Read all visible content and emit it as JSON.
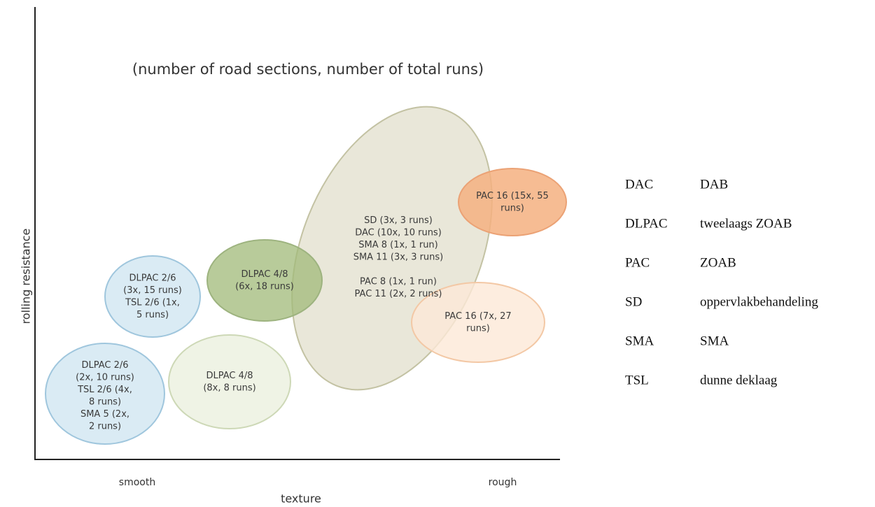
{
  "subtitle": "(number of road sections, number of total runs)",
  "x_axis": {
    "label": "texture",
    "low": "smooth",
    "high": "rough"
  },
  "y_axis": {
    "label": "rolling resistance"
  },
  "nodes": [
    {
      "blocks": [
        [
          "DLPAC 2/6",
          "(3x, 15 runs)",
          "TSL 2/6 (1x,",
          "5 runs)"
        ]
      ]
    },
    {
      "blocks": [
        [
          "DLPAC 2/6",
          "(2x, 10 runs)",
          "TSL 2/6 (4x,",
          "8 runs)",
          "SMA 5 (2x,",
          "2 runs)"
        ]
      ]
    },
    {
      "blocks": [
        [
          "DLPAC 4/8",
          "(8x, 8 runs)"
        ]
      ]
    },
    {
      "blocks": [
        [
          "SD (3x, 3 runs)",
          "DAC (10x, 10 runs)",
          "SMA 8 (1x, 1 run)",
          "SMA 11 (3x, 3 runs)"
        ],
        [
          "PAC 8 (1x, 1 run)",
          "PAC 11 (2x, 2 runs)"
        ]
      ]
    },
    {
      "blocks": [
        [
          "DLPAC 4/8",
          "(6x, 18 runs)"
        ]
      ]
    },
    {
      "blocks": [
        [
          "PAC 16 (7x, 27",
          "runs)"
        ]
      ]
    },
    {
      "blocks": [
        [
          "PAC 16 (15x, 55",
          "runs)"
        ]
      ]
    }
  ],
  "legend": [
    {
      "code": "DAC",
      "meaning": "DAB"
    },
    {
      "code": "DLPAC",
      "meaning": "tweelaags ZOAB"
    },
    {
      "code": "PAC",
      "meaning": "ZOAB"
    },
    {
      "code": "SD",
      "meaning": "oppervlakbehandeling"
    },
    {
      "code": "SMA",
      "meaning": "SMA"
    },
    {
      "code": "TSL",
      "meaning": "dunne deklaag"
    }
  ]
}
